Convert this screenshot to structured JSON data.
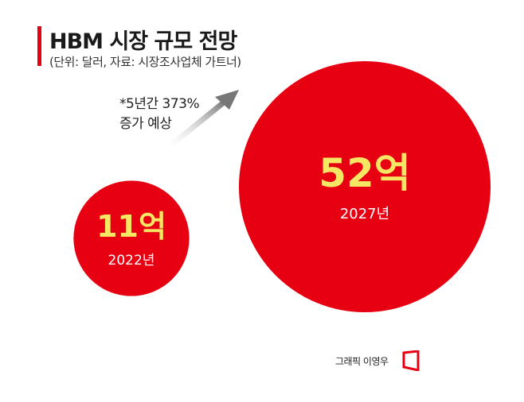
{
  "header": {
    "title": "HBM 시장 규모 전망",
    "subtitle": "(단위: 달러, 자료: 시장조사업체 가트너)"
  },
  "annotation": {
    "line1": "*5년간 373%",
    "line2": "증가 예상"
  },
  "footer": {
    "credit": "그래픽 이영우"
  },
  "colors": {
    "accent": "#e60012",
    "value_text": "#f5e663",
    "year_text": "#ffffff"
  },
  "chart_data": {
    "type": "bubble",
    "title": "HBM 시장 규모 전망",
    "unit": "달러",
    "source": "시장조사업체 가트너",
    "categories": [
      "2022년",
      "2027년"
    ],
    "values": [
      11,
      52
    ],
    "value_labels": [
      "11억",
      "52억"
    ],
    "annotation": "*5년간 373% 증가 예상"
  }
}
